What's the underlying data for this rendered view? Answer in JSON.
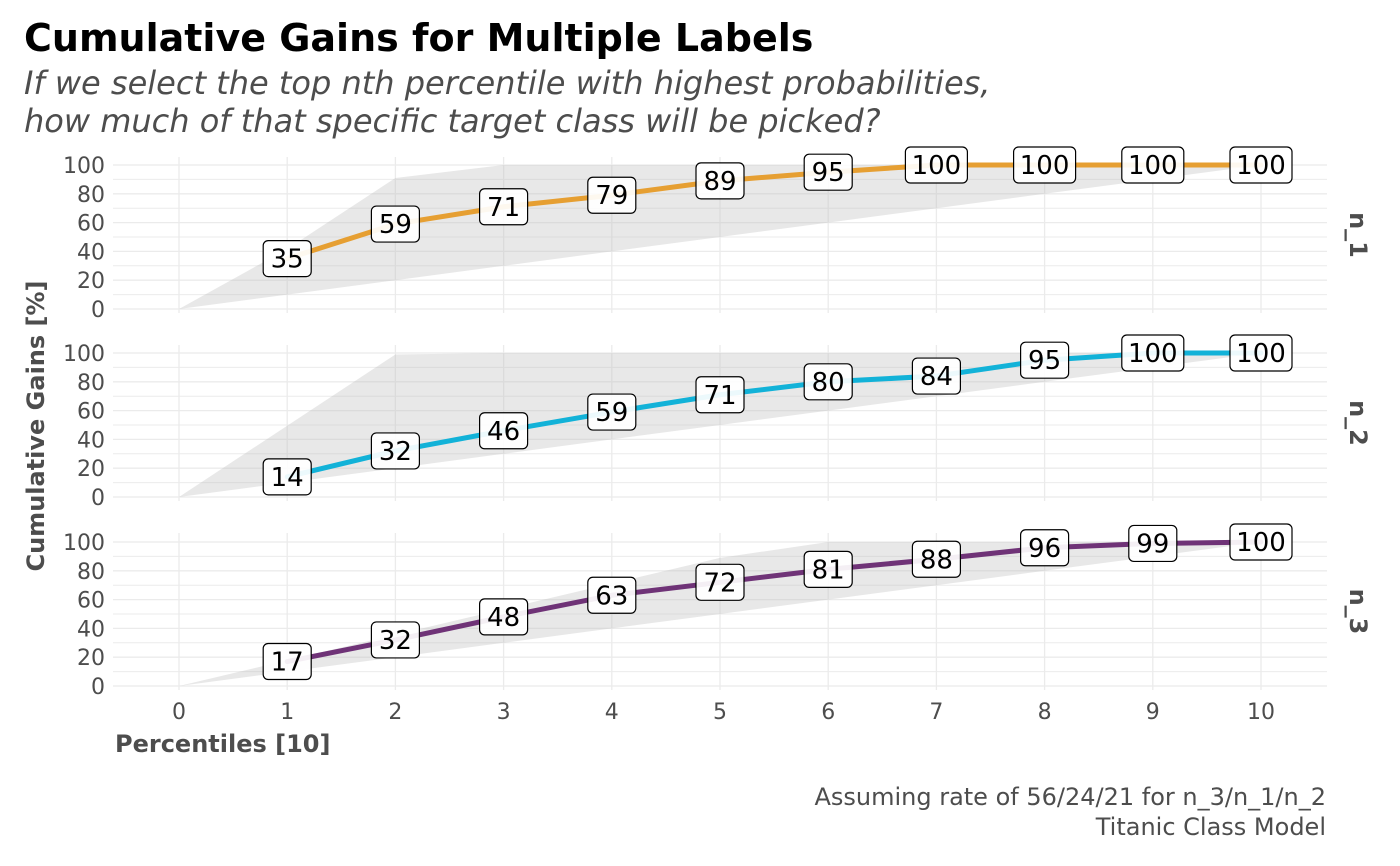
{
  "chart_data": {
    "type": "line",
    "title": "Cumulative Gains for Multiple Labels",
    "subtitle_lines": [
      "If we select the top nth percentile with highest probabilities,",
      "how much of that specific target class will be picked?"
    ],
    "caption_lines": [
      "Assuming rate of 56/24/21 for n_3/n_1/n_2",
      "Titanic Class Model"
    ],
    "xlabel": "Percentiles [10]",
    "ylabel": "Cumulative Gains [%]",
    "x_ticks": [
      "0",
      "1",
      "2",
      "3",
      "4",
      "5",
      "6",
      "7",
      "8",
      "9",
      "10"
    ],
    "y_ticks": [
      "0",
      "20",
      "40",
      "60",
      "80",
      "100"
    ],
    "xlim": [
      0,
      10
    ],
    "ylim": [
      0,
      100
    ],
    "grid": true,
    "facets": [
      {
        "name": "n_1",
        "color": "#E69F32",
        "x": [
          1,
          2,
          3,
          4,
          5,
          6,
          7,
          8,
          9,
          10
        ],
        "values": [
          35,
          59,
          71,
          79,
          89,
          95,
          100,
          100,
          100,
          100
        ],
        "band_upper": [
          0,
          41.7,
          91,
          100,
          100,
          100,
          100,
          100,
          100,
          100,
          100
        ],
        "band_lower": [
          0,
          10,
          20,
          30,
          40,
          50,
          60,
          70,
          80,
          90,
          100
        ]
      },
      {
        "name": "n_2",
        "color": "#12B2D8",
        "x": [
          1,
          2,
          3,
          4,
          5,
          6,
          7,
          8,
          9,
          10
        ],
        "values": [
          14,
          32,
          46,
          59,
          71,
          80,
          84,
          95,
          100,
          100
        ],
        "band_upper": [
          0,
          49.5,
          99,
          100,
          100,
          100,
          100,
          100,
          100,
          100,
          100
        ],
        "band_lower": [
          0,
          10,
          20,
          30,
          40,
          50,
          60,
          70,
          80,
          90,
          100
        ]
      },
      {
        "name": "n_3",
        "color": "#6F3377",
        "x": [
          1,
          2,
          3,
          4,
          5,
          6,
          7,
          8,
          9,
          10
        ],
        "values": [
          17,
          32,
          48,
          63,
          72,
          81,
          88,
          96,
          99,
          100
        ],
        "band_upper": [
          0,
          17.8,
          35.6,
          53.4,
          71.2,
          89,
          100,
          100,
          100,
          100,
          100
        ],
        "band_lower": [
          0,
          10,
          20,
          30,
          40,
          50,
          60,
          70,
          80,
          90,
          100
        ]
      }
    ]
  }
}
